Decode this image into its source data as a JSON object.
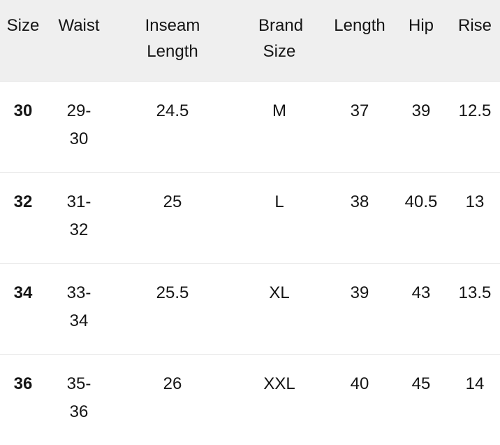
{
  "table": {
    "headers": [
      "Size",
      "Waist",
      "Inseam Length",
      "Brand Size",
      "Length",
      "Hip",
      "Rise"
    ],
    "rows": [
      [
        "30",
        "29-30",
        "24.5",
        "M",
        "37",
        "39",
        "12.5"
      ],
      [
        "32",
        "31-32",
        "25",
        "L",
        "38",
        "40.5",
        "13"
      ],
      [
        "34",
        "33-34",
        "25.5",
        "XL",
        "39",
        "43",
        "13.5"
      ],
      [
        "36",
        "35-36",
        "26",
        "XXL",
        "40",
        "45",
        "14"
      ]
    ]
  }
}
